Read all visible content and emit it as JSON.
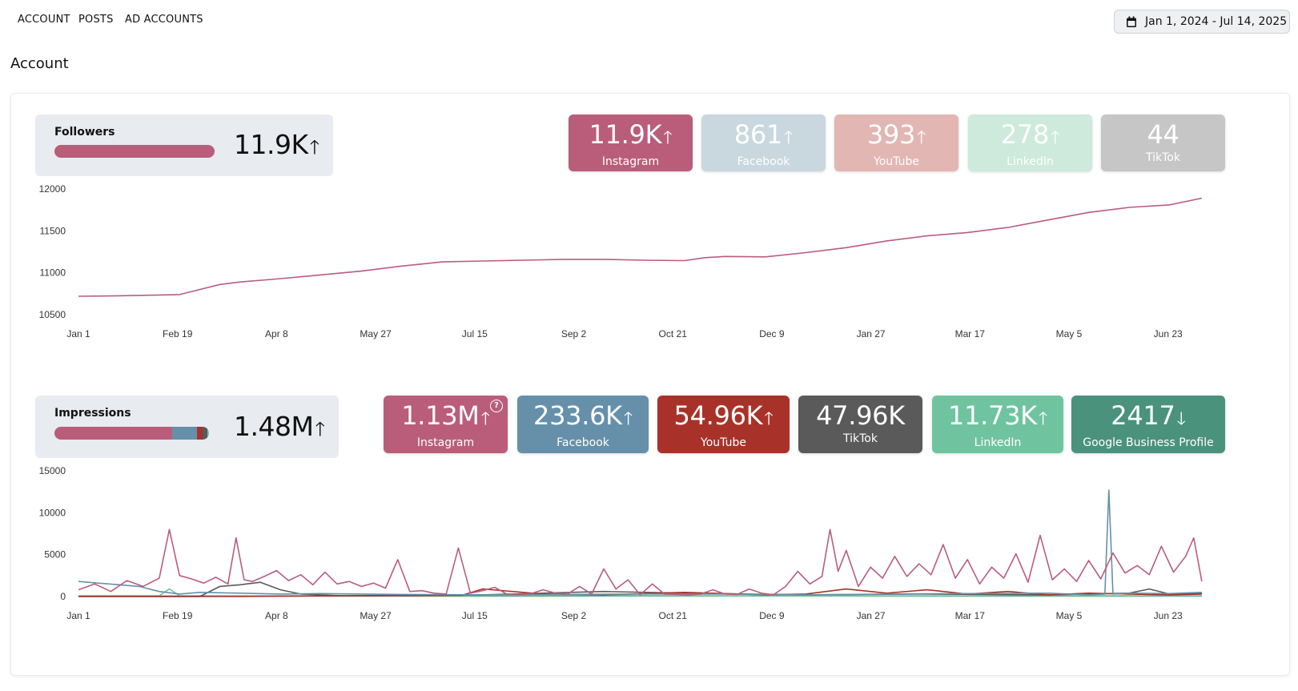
{
  "nav": {
    "tabs": [
      {
        "label": "ACCOUNT"
      },
      {
        "label": "POSTS"
      },
      {
        "label": "AD ACCOUNTS"
      }
    ]
  },
  "date_range": {
    "label": "Jan 1, 2024 - Jul 14, 2025",
    "icon": "calendar-icon"
  },
  "page": {
    "title": "Account"
  },
  "followers": {
    "label": "Followers",
    "value": "11.9K",
    "trend": "up",
    "arrow": "🡑",
    "breakdown_colors": [
      "#b95d7b"
    ],
    "tiles": [
      {
        "value": "11.9K",
        "arrow": "🡑",
        "label": "Instagram",
        "color": "#b95d7b"
      },
      {
        "value": "861",
        "arrow": "🡑",
        "label": "Facebook",
        "color": "#c9d7de"
      },
      {
        "value": "393",
        "arrow": "🡑",
        "label": "YouTube",
        "color": "#e2b6b3"
      },
      {
        "value": "278",
        "arrow": "🡑",
        "label": "LinkedIn",
        "color": "#cdeadc"
      },
      {
        "value": "44",
        "arrow": "",
        "label": "TikTok",
        "color": "#c6c6c6"
      }
    ]
  },
  "impressions": {
    "label": "Impressions",
    "value": "1.48M",
    "trend": "up",
    "arrow": "🡑",
    "breakdown": [
      {
        "name": "Instagram",
        "share": 0.764,
        "color": "#b95d7b"
      },
      {
        "name": "Facebook",
        "share": 0.158,
        "color": "#6690aa"
      },
      {
        "name": "YouTube",
        "share": 0.037,
        "color": "#a83229"
      },
      {
        "name": "TikTok",
        "share": 0.032,
        "color": "#5a5a5a"
      },
      {
        "name": "LinkedIn",
        "share": 0.008,
        "color": "#6fc49f"
      },
      {
        "name": "Google Business Profile",
        "share": 0.002,
        "color": "#4b927c"
      }
    ],
    "help_icon": "?",
    "tiles": [
      {
        "value": "1.13M",
        "arrow": "🡑",
        "label": "Instagram",
        "color": "#b95d7b"
      },
      {
        "value": "233.6K",
        "arrow": "🡑",
        "label": "Facebook",
        "color": "#6690aa"
      },
      {
        "value": "54.96K",
        "arrow": "🡑",
        "label": "YouTube",
        "color": "#a83229"
      },
      {
        "value": "47.96K",
        "arrow": "",
        "label": "TikTok",
        "color": "#5a5a5a"
      },
      {
        "value": "11.73K",
        "arrow": "🡑",
        "label": "LinkedIn",
        "color": "#6fc49f"
      },
      {
        "value": "2417",
        "arrow": "🡓",
        "label": "Google Business Profile",
        "color": "#4b927c"
      }
    ]
  },
  "chart_data": [
    {
      "type": "line",
      "title": "Followers",
      "x_ticks": [
        "Jan 1",
        "Feb 19",
        "Apr 8",
        "May 27",
        "Jul 15",
        "Sep 2",
        "Oct 21",
        "Dec 9",
        "Jan 27",
        "Mar 17",
        "May 5",
        "Jun 23"
      ],
      "y_ticks": [
        10500,
        11000,
        11500,
        12000
      ],
      "ylim": [
        10500,
        12000
      ],
      "x_range_days": [
        0,
        560
      ],
      "series": [
        {
          "name": "Instagram",
          "color": "#b95d7b",
          "x": [
            0,
            20,
            40,
            50,
            60,
            70,
            80,
            100,
            120,
            140,
            160,
            180,
            200,
            220,
            240,
            260,
            280,
            300,
            310,
            320,
            340,
            360,
            380,
            400,
            420,
            440,
            460,
            480,
            500,
            520,
            540,
            556
          ],
          "y": [
            10720,
            10725,
            10735,
            10740,
            10800,
            10860,
            10890,
            10930,
            10975,
            11020,
            11080,
            11130,
            11140,
            11150,
            11160,
            11160,
            11150,
            11145,
            11180,
            11195,
            11190,
            11240,
            11300,
            11380,
            11440,
            11480,
            11540,
            11630,
            11720,
            11780,
            11810,
            11890
          ]
        }
      ]
    },
    {
      "type": "line",
      "title": "Impressions",
      "x_ticks": [
        "Jan 1",
        "Feb 19",
        "Apr 8",
        "May 27",
        "Jul 15",
        "Sep 2",
        "Oct 21",
        "Dec 9",
        "Jan 27",
        "Mar 17",
        "May 5",
        "Jun 23"
      ],
      "y_ticks": [
        0,
        5000,
        10000,
        15000
      ],
      "ylim": [
        0,
        15000
      ],
      "x_range_days": [
        0,
        560
      ],
      "series": [
        {
          "name": "Instagram",
          "color": "#b95d7b",
          "x": [
            0,
            8,
            16,
            24,
            32,
            40,
            45,
            50,
            56,
            62,
            68,
            74,
            78,
            82,
            86,
            92,
            98,
            104,
            110,
            116,
            122,
            128,
            134,
            140,
            146,
            152,
            158,
            164,
            170,
            176,
            182,
            188,
            194,
            200,
            206,
            212,
            218,
            224,
            230,
            236,
            242,
            248,
            254,
            260,
            266,
            272,
            278,
            284,
            290,
            296,
            302,
            308,
            314,
            320,
            326,
            332,
            338,
            344,
            350,
            356,
            362,
            368,
            372,
            376,
            380,
            386,
            392,
            398,
            404,
            410,
            416,
            422,
            428,
            434,
            440,
            446,
            452,
            458,
            464,
            470,
            476,
            482,
            488,
            494,
            500,
            506,
            512,
            518,
            524,
            530,
            536,
            542,
            548,
            552,
            556
          ],
          "y": [
            800,
            1500,
            600,
            1900,
            1200,
            2200,
            8000,
            2500,
            2100,
            1600,
            2300,
            1500,
            7000,
            2000,
            1800,
            2400,
            3100,
            1900,
            2600,
            1400,
            2900,
            1500,
            1800,
            1200,
            1600,
            1000,
            4400,
            600,
            700,
            400,
            300,
            5800,
            400,
            700,
            1100,
            300,
            250,
            350,
            800,
            400,
            300,
            1200,
            300,
            3300,
            900,
            2000,
            200,
            1500,
            300,
            250,
            200,
            300,
            800,
            300,
            250,
            900,
            400,
            200,
            1200,
            3000,
            1500,
            2400,
            8000,
            3000,
            5500,
            1200,
            3500,
            2200,
            4800,
            2400,
            3900,
            2600,
            6200,
            2200,
            4400,
            1500,
            3500,
            2200,
            5100,
            1700,
            7300,
            2000,
            3300,
            1800,
            4300,
            2100,
            5200,
            2800,
            3700,
            2600,
            6000,
            2900,
            4800,
            7000,
            1800
          ]
        },
        {
          "name": "Facebook",
          "color": "#6690aa",
          "x": [
            0,
            10,
            20,
            30,
            40,
            50,
            60,
            80,
            100,
            120,
            140,
            160,
            200,
            240,
            280,
            320,
            360,
            400,
            440,
            480,
            500,
            508,
            510,
            512,
            520,
            540,
            556
          ],
          "y": [
            1800,
            1600,
            1400,
            1200,
            600,
            300,
            500,
            400,
            300,
            350,
            300,
            250,
            200,
            250,
            300,
            300,
            200,
            300,
            350,
            400,
            200,
            300,
            12700,
            300,
            400,
            350,
            500
          ]
        },
        {
          "name": "YouTube",
          "color": "#a83229",
          "x": [
            0,
            80,
            120,
            150,
            190,
            200,
            230,
            260,
            300,
            340,
            360,
            380,
            400,
            420,
            440,
            460,
            480,
            500,
            520,
            540,
            556
          ],
          "y": [
            0,
            0,
            80,
            100,
            150,
            900,
            300,
            200,
            500,
            200,
            300,
            900,
            400,
            800,
            300,
            600,
            200,
            400,
            300,
            200,
            300
          ]
        },
        {
          "name": "TikTok",
          "color": "#5a5a5a",
          "x": [
            0,
            60,
            70,
            80,
            90,
            100,
            110,
            130,
            200,
            260,
            300,
            360,
            420,
            480,
            520,
            530,
            540,
            556
          ],
          "y": [
            0,
            0,
            1200,
            1400,
            1700,
            800,
            300,
            100,
            200,
            600,
            400,
            200,
            300,
            200,
            400,
            900,
            300,
            400
          ]
        },
        {
          "name": "LinkedIn",
          "color": "#6fc49f",
          "x": [
            0,
            40,
            45,
            50,
            100,
            160,
            220,
            300,
            380,
            460,
            556
          ],
          "y": [
            100,
            100,
            900,
            100,
            80,
            100,
            120,
            100,
            80,
            100,
            100
          ]
        },
        {
          "name": "Google Business Profile",
          "color": "#4b927c",
          "x": [
            0,
            140,
            280,
            420,
            556
          ],
          "y": [
            60,
            50,
            70,
            60,
            50
          ]
        }
      ]
    }
  ]
}
